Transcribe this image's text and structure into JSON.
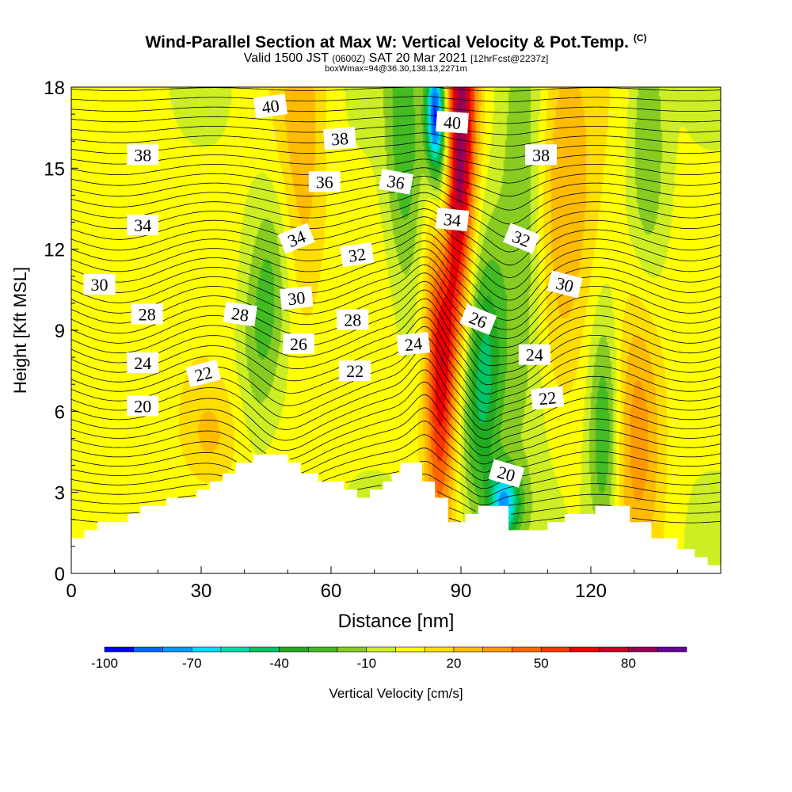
{
  "title": {
    "line1": "Wind-Parallel Section at Max W: Vertical Velocity & Pot.Temp.",
    "line1_mark": "(C)",
    "line2_a": "Valid 1500 JST ",
    "line2_b": "(0600Z)",
    "line2_c": " SAT 20 Mar 2021 ",
    "line2_d": "[12hrFcst@2237z]",
    "line3": "boxWmax=94@36.30,138.13,2271m"
  },
  "chart_data": {
    "type": "heatmap",
    "xlabel": "Distance [nm]",
    "ylabel": "Height [Kft MSL]",
    "xlim": [
      0,
      150
    ],
    "ylim": [
      0,
      18
    ],
    "x_ticks": [
      0,
      30,
      60,
      90,
      120
    ],
    "x_tick_labels": [
      "0",
      "30",
      "60",
      "90",
      "120"
    ],
    "y_ticks": [
      0,
      3,
      6,
      9,
      12,
      15,
      18
    ],
    "y_tick_labels": [
      "0",
      "3",
      "6",
      "9",
      "12",
      "15",
      "18"
    ],
    "grid": false,
    "colorbar": {
      "label": "Vertical Velocity [cm/s]",
      "min": -100,
      "max": 100,
      "step": 10,
      "tick_values": [
        -100,
        -70,
        -40,
        -10,
        20,
        50,
        80
      ],
      "tick_labels": [
        "-100",
        "-70",
        "-40",
        "-10",
        "20",
        "50",
        "80"
      ],
      "colors": [
        "#0000ff",
        "#0066ff",
        "#0099ff",
        "#00ddff",
        "#00ddaa",
        "#00c466",
        "#22aa22",
        "#44bb22",
        "#88cc22",
        "#ccee22",
        "#ffff00",
        "#ffdd00",
        "#ffbb00",
        "#ff9900",
        "#ff6600",
        "#ff3300",
        "#ee0000",
        "#cc0022",
        "#990055",
        "#660099"
      ]
    },
    "terrain_kft": [
      [
        0,
        1.3
      ],
      [
        3,
        1.6
      ],
      [
        6,
        1.9
      ],
      [
        13,
        2.2
      ],
      [
        16,
        2.5
      ],
      [
        22,
        2.8
      ],
      [
        29,
        3.1
      ],
      [
        32,
        3.4
      ],
      [
        35,
        3.7
      ],
      [
        38,
        4.1
      ],
      [
        42,
        4.4
      ],
      [
        50,
        4.1
      ],
      [
        53,
        3.7
      ],
      [
        57,
        3.4
      ],
      [
        63,
        3.1
      ],
      [
        66,
        2.8
      ],
      [
        69,
        3.1
      ],
      [
        72,
        3.4
      ],
      [
        74,
        3.7
      ],
      [
        76,
        4.1
      ],
      [
        81,
        3.4
      ],
      [
        84,
        2.8
      ],
      [
        87,
        1.9
      ],
      [
        91,
        2.2
      ],
      [
        94,
        2.5
      ],
      [
        97,
        2.5
      ],
      [
        101,
        1.6
      ],
      [
        108,
        1.6
      ],
      [
        110,
        1.9
      ],
      [
        114,
        2.2
      ],
      [
        119,
        2.2
      ],
      [
        121,
        2.5
      ],
      [
        129,
        1.9
      ],
      [
        134,
        1.3
      ],
      [
        140,
        0.9
      ],
      [
        144,
        0.6
      ],
      [
        147,
        0.3
      ],
      [
        150,
        0.3
      ]
    ],
    "w_features": [
      {
        "x": 85.5,
        "y": 9,
        "w": 75,
        "dx": 2.5,
        "dy": 5,
        "tilt": 0.1
      },
      {
        "x": 90,
        "y": 16,
        "w": 80,
        "dx": 2.5,
        "dy": 5,
        "tilt": 0.1
      },
      {
        "x": 84,
        "y": 17,
        "w": -95,
        "dx": 1.5,
        "dy": 1.5,
        "tilt": 0
      },
      {
        "x": 86,
        "y": 14,
        "w": -55,
        "dx": 1.8,
        "dy": 3,
        "tilt": 0
      },
      {
        "x": 100,
        "y": 2.6,
        "w": -70,
        "dx": 2.5,
        "dy": 0.9,
        "tilt": 0
      },
      {
        "x": 95,
        "y": 7,
        "w": -45,
        "dx": 3.5,
        "dy": 3.5,
        "tilt": 0.2
      },
      {
        "x": 105,
        "y": 13,
        "w": -30,
        "dx": 4,
        "dy": 6,
        "tilt": 0
      },
      {
        "x": 77,
        "y": 16,
        "w": -30,
        "dx": 3,
        "dy": 4,
        "tilt": 0
      },
      {
        "x": 123,
        "y": 5,
        "w": -35,
        "dx": 2.5,
        "dy": 3,
        "tilt": 0
      },
      {
        "x": 133,
        "y": 16,
        "w": -25,
        "dx": 3,
        "dy": 4,
        "tilt": 0
      },
      {
        "x": 45,
        "y": 10,
        "w": -25,
        "dx": 3.5,
        "dy": 3,
        "tilt": 0.5
      },
      {
        "x": 131,
        "y": 6,
        "w": 35,
        "dx": 4,
        "dy": 4,
        "tilt": 0
      },
      {
        "x": 113,
        "y": 15,
        "w": 30,
        "dx": 6,
        "dy": 5,
        "tilt": 0
      },
      {
        "x": 53,
        "y": 15,
        "w": 25,
        "dx": 4,
        "dy": 5,
        "tilt": 0
      },
      {
        "x": 32,
        "y": 5,
        "w": 20,
        "dx": 5,
        "dy": 1.5,
        "tilt": 0
      },
      {
        "x": 12,
        "y": 11,
        "w": 10,
        "dx": 8,
        "dy": 3,
        "tilt": 0
      }
    ],
    "theta_contours": {
      "min": 19,
      "max": 41,
      "step": 0.5,
      "labeled_every": 2
    },
    "contour_labels": [
      {
        "text": "40",
        "x": 46,
        "y": 17.3,
        "rot": -8
      },
      {
        "text": "38",
        "x": 16.5,
        "y": 15.5,
        "rot": 0
      },
      {
        "text": "38",
        "x": 62,
        "y": 16.1,
        "rot": -4
      },
      {
        "text": "40",
        "x": 88,
        "y": 16.7,
        "rot": 4
      },
      {
        "text": "38",
        "x": 108.5,
        "y": 15.5,
        "rot": 0
      },
      {
        "text": "36",
        "x": 58.5,
        "y": 14.5,
        "rot": 0
      },
      {
        "text": "36",
        "x": 75,
        "y": 14.5,
        "rot": 10
      },
      {
        "text": "34",
        "x": 16.5,
        "y": 12.9,
        "rot": 0
      },
      {
        "text": "34",
        "x": 52,
        "y": 12.4,
        "rot": -22
      },
      {
        "text": "34",
        "x": 88,
        "y": 13.1,
        "rot": 6
      },
      {
        "text": "32",
        "x": 104,
        "y": 12.4,
        "rot": 22
      },
      {
        "text": "32",
        "x": 66,
        "y": 11.8,
        "rot": -8
      },
      {
        "text": "30",
        "x": 6.5,
        "y": 10.7,
        "rot": 0
      },
      {
        "text": "30",
        "x": 52,
        "y": 10.2,
        "rot": -6
      },
      {
        "text": "30",
        "x": 114,
        "y": 10.7,
        "rot": 14
      },
      {
        "text": "28",
        "x": 17.5,
        "y": 9.6,
        "rot": 0
      },
      {
        "text": "28",
        "x": 39,
        "y": 9.6,
        "rot": 8
      },
      {
        "text": "28",
        "x": 65,
        "y": 9.4,
        "rot": 0
      },
      {
        "text": "26",
        "x": 52.5,
        "y": 8.5,
        "rot": 0
      },
      {
        "text": "26",
        "x": 94,
        "y": 9.4,
        "rot": 22
      },
      {
        "text": "24",
        "x": 16.5,
        "y": 7.8,
        "rot": 0
      },
      {
        "text": "24",
        "x": 79,
        "y": 8.5,
        "rot": -6
      },
      {
        "text": "24",
        "x": 107,
        "y": 8.1,
        "rot": 0
      },
      {
        "text": "22",
        "x": 30.5,
        "y": 7.4,
        "rot": -14
      },
      {
        "text": "22",
        "x": 65.5,
        "y": 7.5,
        "rot": 0
      },
      {
        "text": "22",
        "x": 110,
        "y": 6.5,
        "rot": -6
      },
      {
        "text": "20",
        "x": 16.5,
        "y": 6.2,
        "rot": 0
      },
      {
        "text": "20",
        "x": 100.5,
        "y": 3.7,
        "rot": 16
      }
    ]
  }
}
